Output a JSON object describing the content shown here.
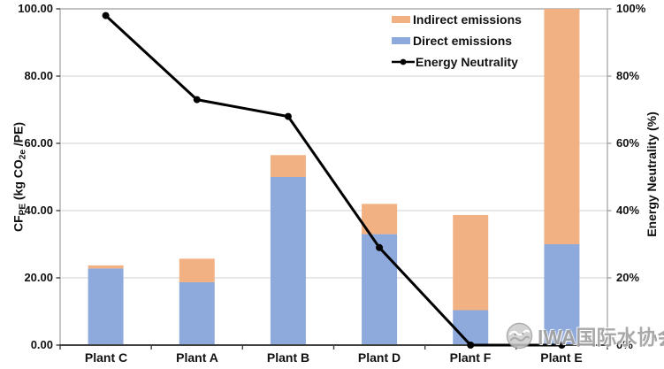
{
  "chart_data": {
    "type": "combo",
    "subtype": "stacked-bar-with-line",
    "title": "",
    "categories": [
      "Plant C",
      "Plant A",
      "Plant B",
      "Plant D",
      "Plant F",
      "Plant E"
    ],
    "bar_series": [
      {
        "name": "Direct emissions",
        "color": "#8EA9DB",
        "values": [
          22.8,
          18.7,
          50.0,
          33.0,
          10.4,
          30.0
        ]
      },
      {
        "name": "Indirect emissions",
        "color": "#F2B183",
        "values": [
          0.9,
          7.0,
          6.5,
          9.0,
          28.3,
          70.0
        ]
      }
    ],
    "line_series": {
      "name": "Energy Neutrality",
      "color": "#000000",
      "marker": "filled-circle",
      "axis": "right",
      "values_percent": [
        98,
        73,
        68,
        29,
        0,
        0
      ]
    },
    "left_axis": {
      "title_base1": "CF",
      "title_sub1": "PE",
      "title_base2": " (kg CO",
      "title_sub2": "2e",
      "title_base3": " /PE)",
      "range": [
        0,
        100
      ],
      "ticks": [
        "100.00",
        "80.00",
        "60.00",
        "40.00",
        "20.00",
        "0.00"
      ]
    },
    "right_axis": {
      "title": "Energy Neutrality (%)",
      "range": [
        0,
        100
      ],
      "ticks": [
        "100%",
        "80%",
        "60%",
        "40%",
        "20%",
        "0%"
      ]
    },
    "legend": {
      "position": "top-right-inside",
      "items": [
        {
          "label": "Indirect emissions",
          "swatch": "orange-rect"
        },
        {
          "label": "Direct emissions",
          "swatch": "blue-rect"
        },
        {
          "label": "Energy Neutrality",
          "swatch": "black-line-circle-marker"
        }
      ]
    },
    "grid": true,
    "colors": {
      "gridline": "#d9d9d9",
      "plot_border": "#a6a6a6",
      "bottom_axis": "#404040",
      "text": "#111111"
    },
    "notes": "Plant E stacked bar is clipped at the left-axis maximum of 100"
  },
  "watermark": {
    "text": "IWA国际水协会",
    "logo_icon": "iwa-wave-logo-icon"
  }
}
